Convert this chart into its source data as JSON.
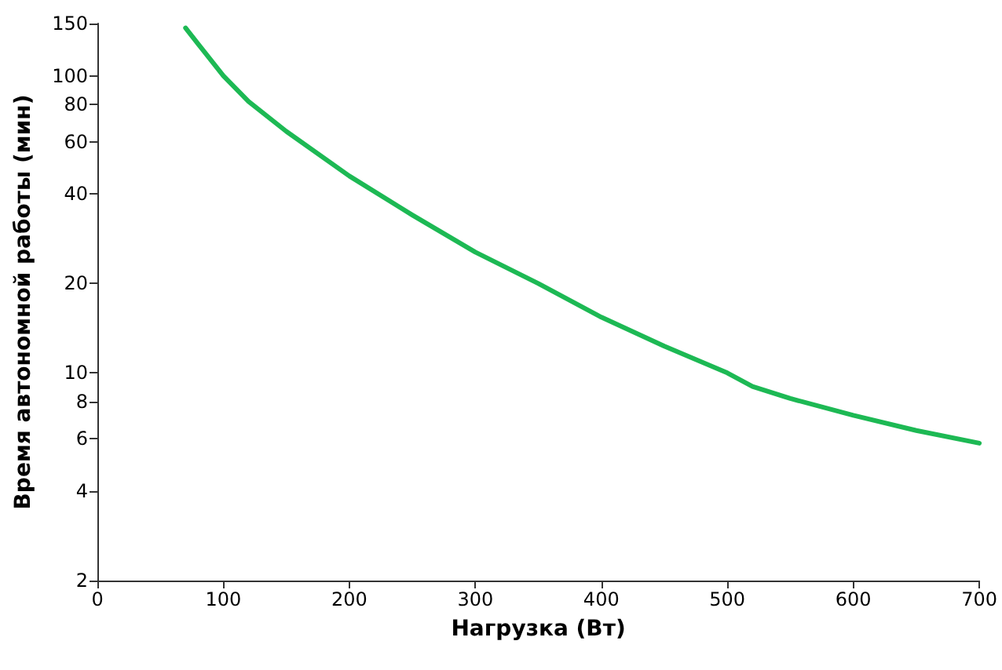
{
  "chart_data": {
    "type": "line",
    "xlabel": "Нагрузка (Вт)",
    "ylabel": "Время автономной работы (мин)",
    "log": "y",
    "grid": false,
    "marker": "none",
    "line_style": "solid",
    "x": [
      70,
      80,
      100,
      120,
      150,
      200,
      250,
      300,
      350,
      400,
      450,
      500,
      520,
      550,
      600,
      650,
      700
    ],
    "series": [
      {
        "color": "#1db954",
        "values": [
          145,
          128,
          100,
          82,
          65,
          46,
          34,
          25.5,
          20,
          15.4,
          12.3,
          10,
          9,
          8.2,
          7.2,
          6.4,
          5.8
        ]
      }
    ],
    "xlim": [
      0,
      700
    ],
    "xticks": [
      0,
      100,
      200,
      300,
      400,
      500,
      600,
      700
    ],
    "ylim": [
      2,
      150
    ],
    "yticks": [
      2,
      4,
      6,
      8,
      10,
      20,
      40,
      60,
      80,
      100,
      150
    ]
  }
}
